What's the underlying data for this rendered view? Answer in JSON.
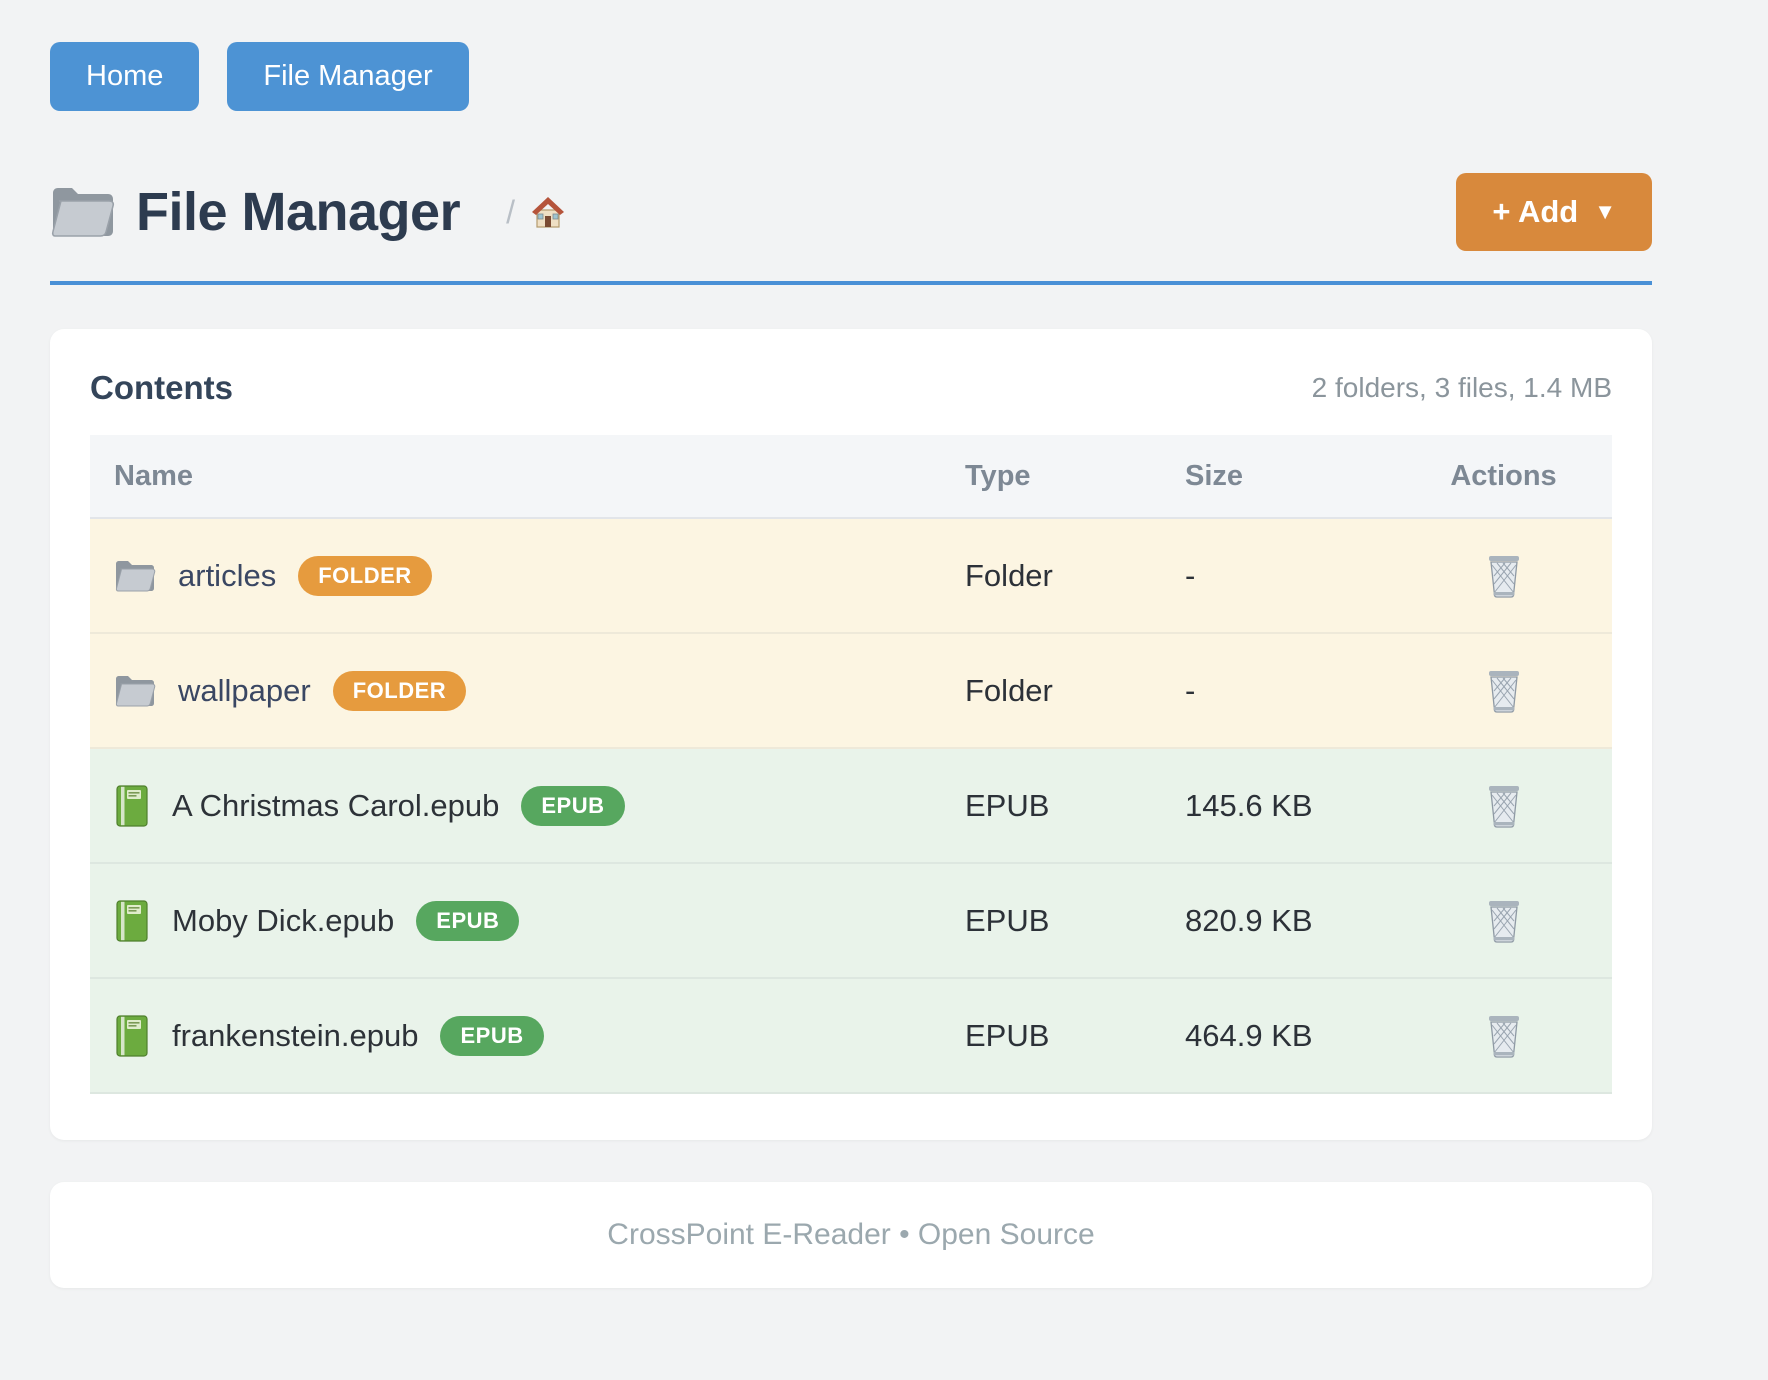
{
  "nav": {
    "buttons": [
      {
        "label": "Home"
      },
      {
        "label": "File Manager"
      }
    ]
  },
  "header": {
    "title": "File Manager",
    "breadcrumb_separator": "/",
    "add_button_label": "+ Add",
    "add_button_caret": "▼"
  },
  "content": {
    "card_title": "Contents",
    "summary": "2 folders, 3 files, 1.4 MB",
    "table": {
      "columns": [
        "Name",
        "Type",
        "Size",
        "Actions"
      ],
      "rows": [
        {
          "kind": "folder",
          "name": "articles",
          "badge": "FOLDER",
          "type": "Folder",
          "size": "-"
        },
        {
          "kind": "folder",
          "name": "wallpaper",
          "badge": "FOLDER",
          "type": "Folder",
          "size": "-"
        },
        {
          "kind": "epub",
          "name": "A Christmas Carol.epub",
          "badge": "EPUB",
          "type": "EPUB",
          "size": "145.6 KB"
        },
        {
          "kind": "epub",
          "name": "Moby Dick.epub",
          "badge": "EPUB",
          "type": "EPUB",
          "size": "820.9 KB"
        },
        {
          "kind": "epub",
          "name": "frankenstein.epub",
          "badge": "EPUB",
          "type": "EPUB",
          "size": "464.9 KB"
        }
      ]
    }
  },
  "footer": {
    "text": "CrossPoint E-Reader • Open Source"
  },
  "colors": {
    "page_background": "#f2f3f4",
    "primary_blue": "#4d93d4",
    "divider_blue": "#4a90d6",
    "accent_orange": "#d8893c",
    "folder_row": "#fcf5e2",
    "epub_row": "#e9f3ea",
    "folder_badge": "#e69b3e",
    "epub_badge": "#57a75f"
  }
}
